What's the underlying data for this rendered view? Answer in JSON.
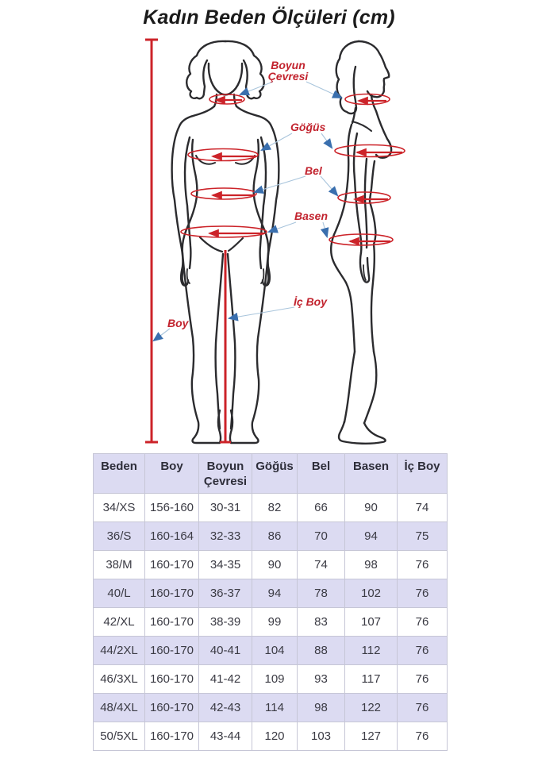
{
  "title": "Kadın Beden Ölçüleri (cm)",
  "diagram": {
    "labels": {
      "neck": "Boyun Çevresi",
      "bust": "Göğüs",
      "waist": "Bel",
      "hips": "Basen",
      "inseam": "İç Boy",
      "height": "Boy"
    }
  },
  "table": {
    "columns": [
      "Beden",
      "Boy",
      "Boyun Çevresi",
      "Göğüs",
      "Bel",
      "Basen",
      "İç Boy"
    ],
    "rows": [
      [
        "34/XS",
        "156-160",
        "30-31",
        "82",
        "66",
        "90",
        "74"
      ],
      [
        "36/S",
        "160-164",
        "32-33",
        "86",
        "70",
        "94",
        "75"
      ],
      [
        "38/M",
        "160-170",
        "34-35",
        "90",
        "74",
        "98",
        "76"
      ],
      [
        "40/L",
        "160-170",
        "36-37",
        "94",
        "78",
        "102",
        "76"
      ],
      [
        "42/XL",
        "160-170",
        "38-39",
        "99",
        "83",
        "107",
        "76"
      ],
      [
        "44/2XL",
        "160-170",
        "40-41",
        "104",
        "88",
        "112",
        "76"
      ],
      [
        "46/3XL",
        "160-170",
        "41-42",
        "109",
        "93",
        "117",
        "76"
      ],
      [
        "48/4XL",
        "160-170",
        "42-43",
        "114",
        "98",
        "122",
        "76"
      ],
      [
        "50/5XL",
        "160-170",
        "43-44",
        "120",
        "103",
        "127",
        "76"
      ]
    ]
  },
  "colors": {
    "measure_red": "#cc2329",
    "label_red": "#c2232e",
    "arrow_blue": "#3a6fae",
    "connector_blue": "#a9c5dc",
    "outline_ink": "#2b2b2e",
    "table_border": "#c6c6d6",
    "table_stripe": "#dcdbf2",
    "cell_text": "#3b3b44",
    "header_text": "#2e2e3a"
  }
}
